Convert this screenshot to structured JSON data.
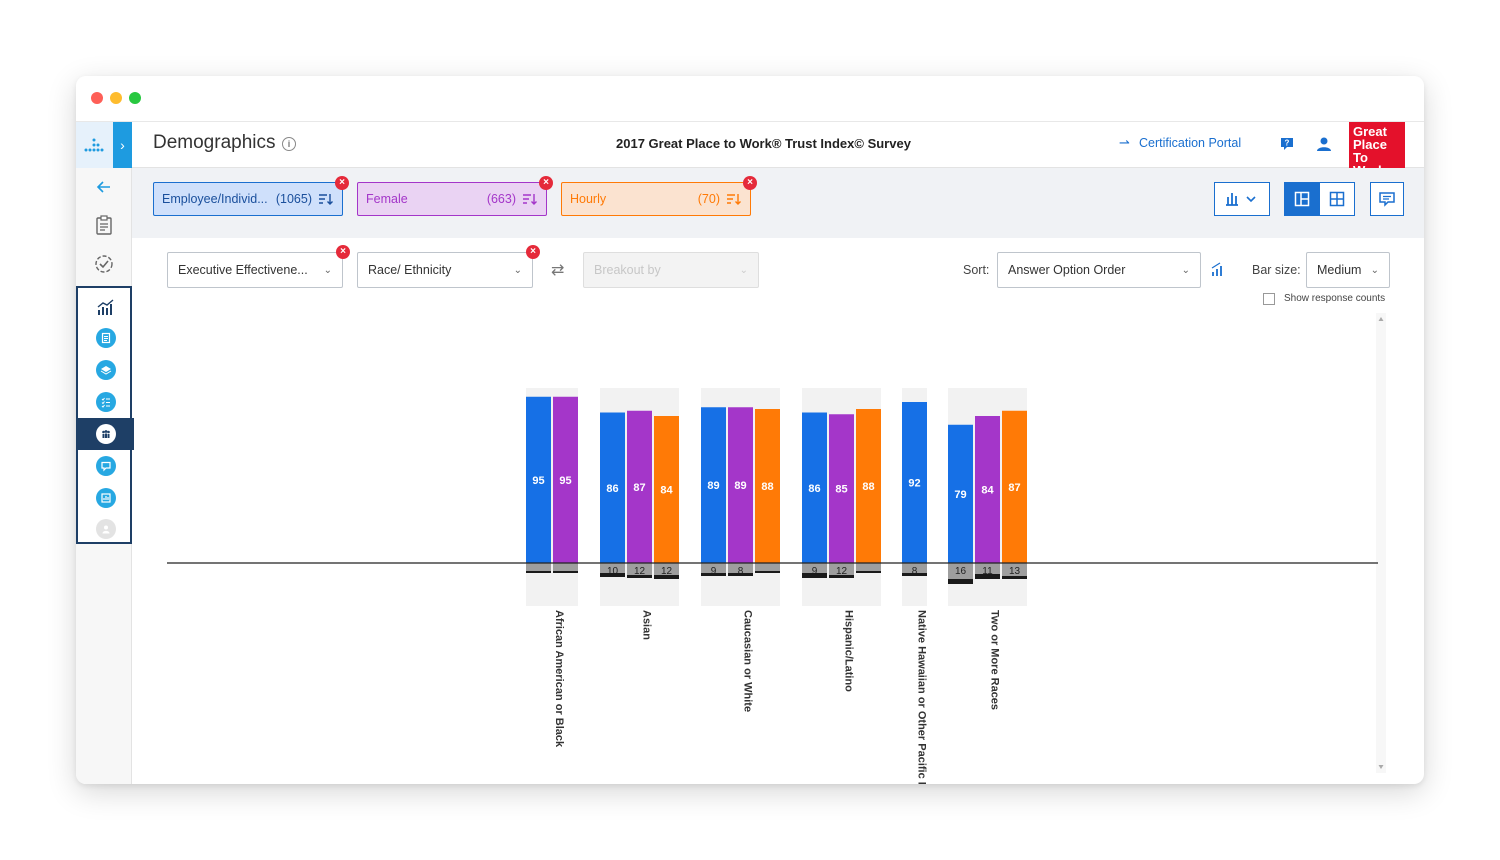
{
  "app": {
    "page_title": "Demographics",
    "survey_title": "2017 Great Place to Work® Trust Index© Survey",
    "certification_link": "Certification Portal",
    "brand_logo": [
      "Great",
      "Place",
      "To",
      "Work."
    ]
  },
  "icons": {
    "logo": "chart-dots-logo",
    "expand": "chevron-right-icon",
    "back": "arrow-left-icon",
    "info": "info-icon",
    "help": "help-chat-icon",
    "user": "user-icon",
    "cert": "arrow-right-icon"
  },
  "colors": {
    "accent": "#1a6fcf",
    "series_blue": "#1670e6",
    "series_purple": "#a436c9",
    "series_orange": "#ff7a06",
    "neutral_gray": "#9e9e9e",
    "negative_black": "#1a1a1a"
  },
  "filters": [
    {
      "label": "Employee/Individ...",
      "count": "(1065)"
    },
    {
      "label": "Female",
      "count": "(663)"
    },
    {
      "label": "Hourly",
      "count": "(70)"
    }
  ],
  "controls": {
    "question_dropdown": "Executive Effectivene...",
    "dimension_dropdown": "Race/ Ethnicity",
    "breakout_placeholder": "Breakout by",
    "sort_label": "Sort:",
    "sort_value": "Answer Option Order",
    "bar_size_label": "Bar size:",
    "bar_size_value": "Medium",
    "show_counts_label": "Show response counts",
    "show_counts_checked": false
  },
  "chart_data": {
    "type": "bar",
    "categories": [
      "African American or Black",
      "Asian",
      "Caucasian or White",
      "Hispanic/Latino",
      "Native Hawaiian or Other Pacific Islander",
      "Two or More Races"
    ],
    "series": [
      {
        "name": "Employee/Individ...",
        "positive": [
          95,
          86,
          89,
          86,
          92,
          79
        ],
        "neutral": [
          null,
          10,
          9,
          9,
          8,
          16
        ]
      },
      {
        "name": "Female",
        "positive": [
          95,
          87,
          89,
          85,
          null,
          84
        ],
        "neutral": [
          null,
          12,
          8,
          12,
          null,
          11
        ]
      },
      {
        "name": "Hourly",
        "positive": [
          null,
          84,
          88,
          88,
          null,
          87
        ],
        "neutral": [
          null,
          12,
          null,
          null,
          null,
          13
        ]
      }
    ]
  }
}
